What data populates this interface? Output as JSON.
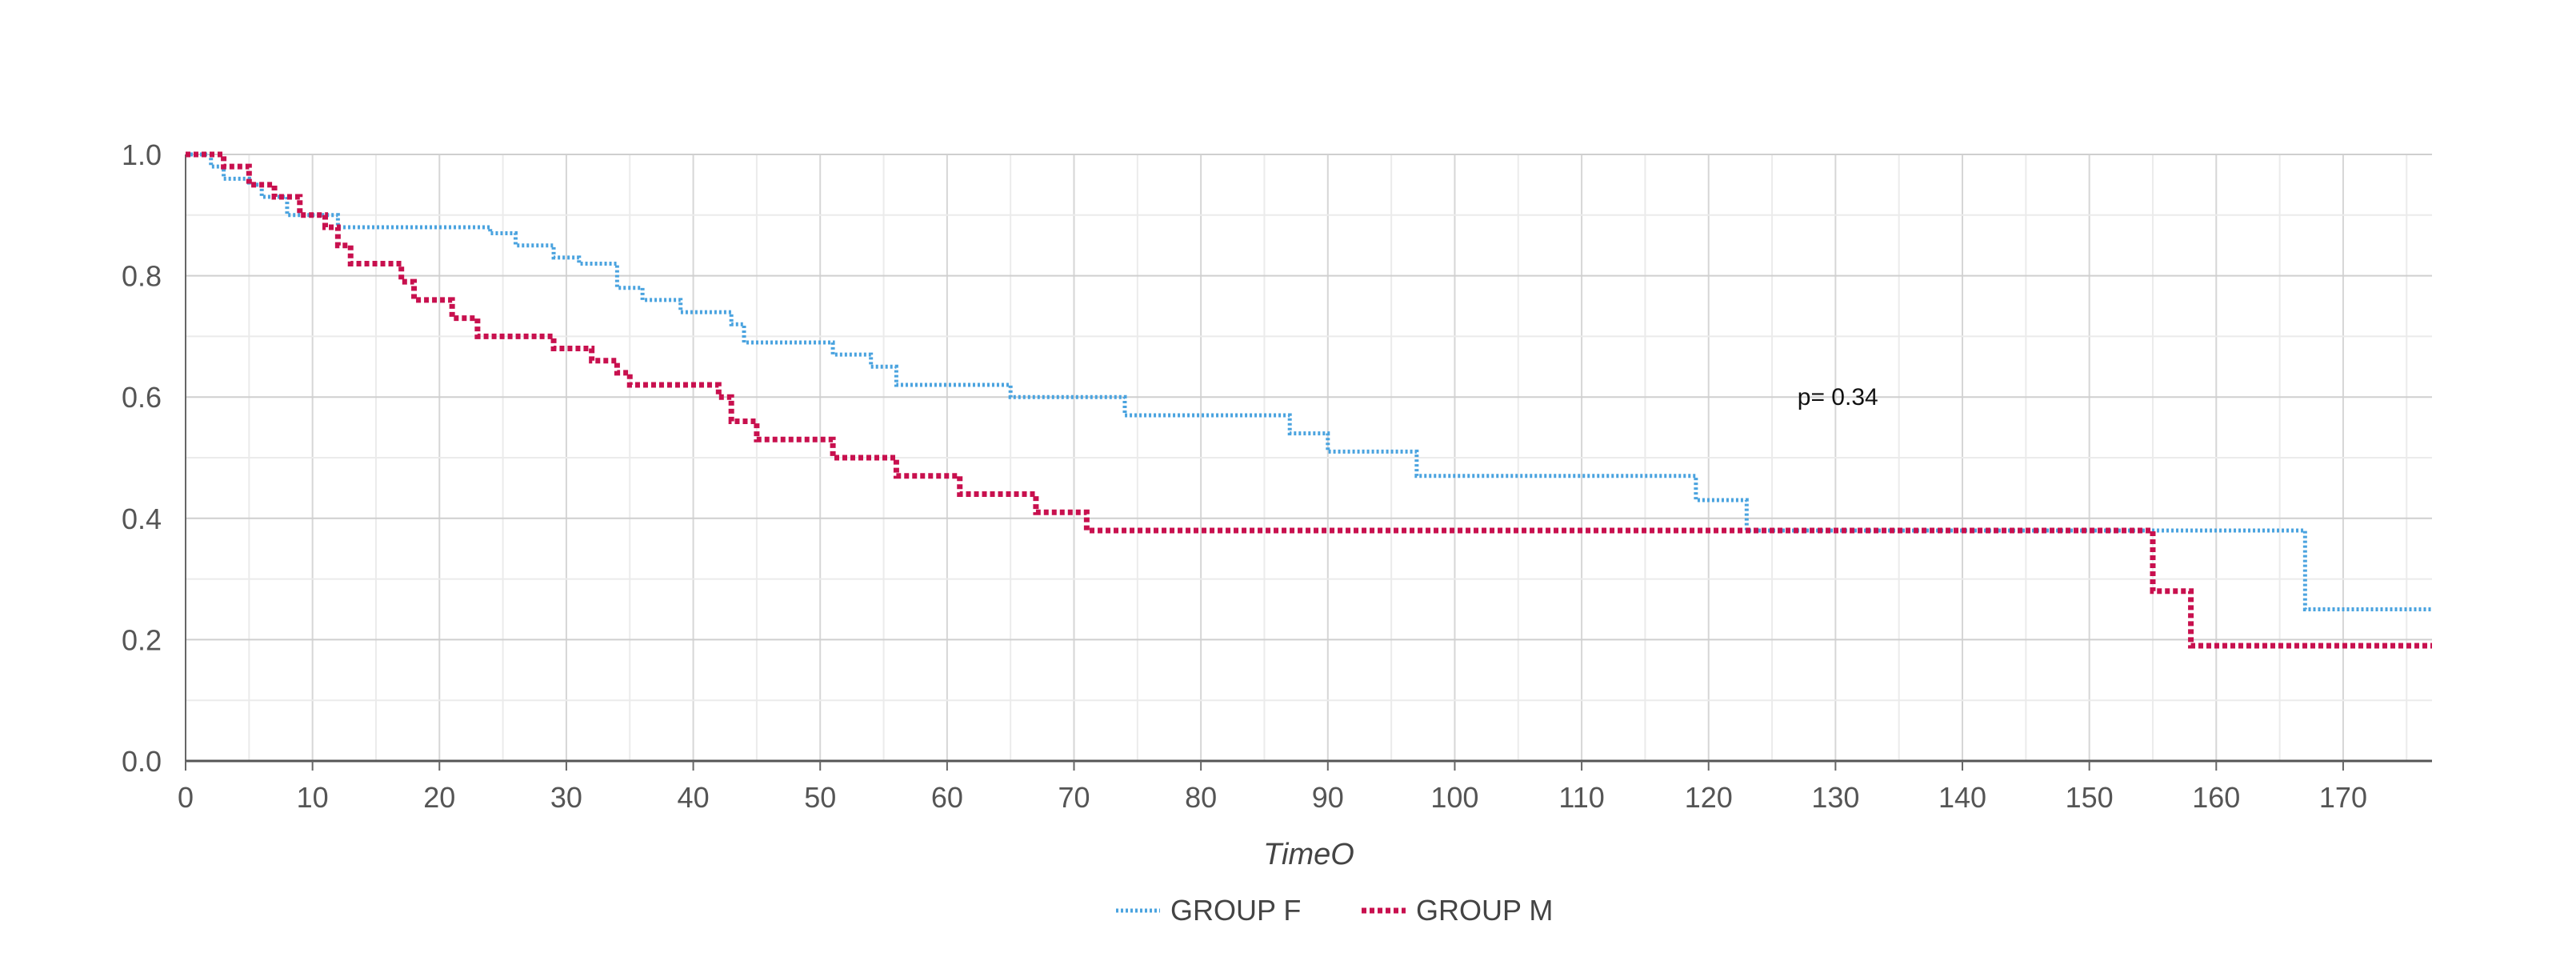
{
  "chart_data": {
    "type": "line",
    "subtype": "kaplan-meier step",
    "title": "",
    "xlabel": "TimeO",
    "ylabel": "",
    "xlim": [
      0,
      177
    ],
    "ylim": [
      0,
      1
    ],
    "x_ticks": [
      0,
      10,
      20,
      30,
      40,
      50,
      60,
      70,
      80,
      90,
      100,
      110,
      120,
      130,
      140,
      150,
      160,
      170
    ],
    "y_ticks": [
      "0.0",
      "0.2",
      "0.4",
      "0.6",
      "0.8",
      "1.0"
    ],
    "grid": true,
    "legend_position": "bottom-center",
    "annotation": {
      "text": "p= 0.34",
      "x": 127,
      "y": 0.6
    },
    "series": [
      {
        "name": "GROUP F",
        "color": "#4aa3df",
        "style": "dotted",
        "points": [
          [
            0,
            1.0
          ],
          [
            2,
            0.98
          ],
          [
            3,
            0.96
          ],
          [
            5,
            0.95
          ],
          [
            6,
            0.93
          ],
          [
            8,
            0.9
          ],
          [
            12,
            0.88
          ],
          [
            24,
            0.87
          ],
          [
            26,
            0.85
          ],
          [
            29,
            0.83
          ],
          [
            31,
            0.82
          ],
          [
            34,
            0.78
          ],
          [
            36,
            0.76
          ],
          [
            39,
            0.74
          ],
          [
            43,
            0.72
          ],
          [
            44,
            0.69
          ],
          [
            51,
            0.67
          ],
          [
            54,
            0.65
          ],
          [
            56,
            0.62
          ],
          [
            65,
            0.6
          ],
          [
            74,
            0.57
          ],
          [
            87,
            0.54
          ],
          [
            90,
            0.51
          ],
          [
            97,
            0.47
          ],
          [
            119,
            0.43
          ],
          [
            123,
            0.38
          ],
          [
            167,
            0.25
          ],
          [
            177,
            0.25
          ]
        ]
      },
      {
        "name": "GROUP M",
        "color": "#c8104e",
        "style": "dotted",
        "points": [
          [
            0,
            1.0
          ],
          [
            3,
            0.98
          ],
          [
            5,
            0.95
          ],
          [
            7,
            0.93
          ],
          [
            9,
            0.9
          ],
          [
            11,
            0.88
          ],
          [
            12,
            0.85
          ],
          [
            13,
            0.82
          ],
          [
            17,
            0.79
          ],
          [
            18,
            0.76
          ],
          [
            21,
            0.73
          ],
          [
            23,
            0.7
          ],
          [
            29,
            0.68
          ],
          [
            32,
            0.66
          ],
          [
            34,
            0.64
          ],
          [
            35,
            0.62
          ],
          [
            42,
            0.6
          ],
          [
            43,
            0.56
          ],
          [
            45,
            0.53
          ],
          [
            51,
            0.5
          ],
          [
            56,
            0.47
          ],
          [
            61,
            0.44
          ],
          [
            67,
            0.41
          ],
          [
            71,
            0.38
          ],
          [
            155,
            0.28
          ],
          [
            158,
            0.19
          ],
          [
            177,
            0.19
          ]
        ]
      }
    ]
  }
}
